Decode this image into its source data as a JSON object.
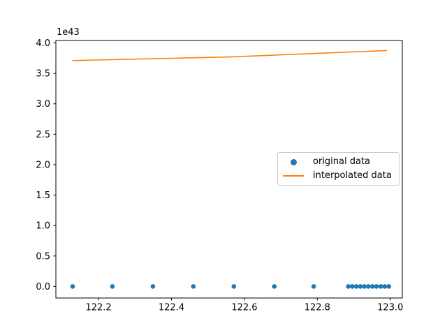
{
  "figure": {
    "background_color": "#ffffff",
    "offset_label": "1e43"
  },
  "chart_data": {
    "type": "scatter",
    "title": "",
    "xlabel": "",
    "ylabel": "",
    "y_offset_label": "1e43",
    "xlim": [
      122.083,
      123.033
    ],
    "ylim_1e43": [
      -0.19,
      4.04
    ],
    "x_ticks": [
      122.2,
      122.4,
      122.6,
      122.8,
      123.0
    ],
    "y_ticks_1e43": [
      0.0,
      0.5,
      1.0,
      1.5,
      2.0,
      2.5,
      3.0,
      3.5,
      4.0
    ],
    "grid": false,
    "legend_position": "center right",
    "series": [
      {
        "name": "original data",
        "type": "scatter",
        "color": "#1f77b4",
        "x": [
          122.129,
          122.238,
          122.349,
          122.46,
          122.571,
          122.682,
          122.79,
          122.885,
          122.896,
          122.907,
          122.918,
          122.929,
          122.94,
          122.951,
          122.962,
          122.974,
          122.985,
          122.996
        ],
        "y_1e43": [
          0,
          0,
          0,
          0,
          0,
          0,
          0,
          0,
          0,
          0,
          0,
          0,
          0,
          0,
          0,
          0,
          0,
          0
        ]
      },
      {
        "name": "interpolated data",
        "type": "line",
        "color": "#ff7f0e",
        "x": [
          122.129,
          122.56,
          122.99
        ],
        "y_1e43": [
          3.71,
          3.77,
          3.875
        ]
      }
    ]
  }
}
